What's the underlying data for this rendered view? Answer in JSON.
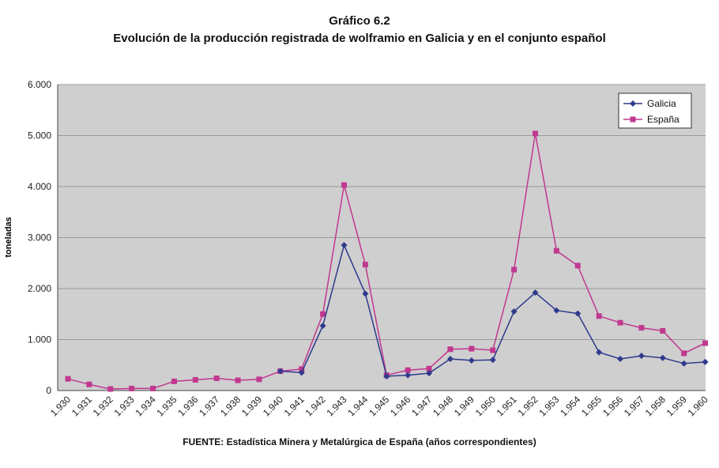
{
  "chart_data": {
    "type": "line",
    "title": "Gráfico 6.2",
    "subtitle": "Evolución de la producción registrada de wolframio en Galicia y en el conjunto español",
    "ylabel": "toneladas",
    "xlabel": "",
    "ylim": [
      0,
      6000
    ],
    "yticks": [
      0,
      1000,
      2000,
      3000,
      4000,
      5000,
      6000
    ],
    "ytick_labels": [
      "0",
      "1.000",
      "2.000",
      "3.000",
      "4.000",
      "5.000",
      "6.000"
    ],
    "categories": [
      "1.930",
      "1.931",
      "1.932",
      "1.933",
      "1.934",
      "1.935",
      "1.936",
      "1.937",
      "1.938",
      "1.939",
      "1.940",
      "1.941",
      "1.942",
      "1.943",
      "1.944",
      "1.945",
      "1.946",
      "1.947",
      "1.948",
      "1.949",
      "1.950",
      "1.951",
      "1.952",
      "1.953",
      "1.954",
      "1.955",
      "1.956",
      "1.957",
      "1.958",
      "1.959",
      "1.960"
    ],
    "grid": true,
    "legend_position": "top-right",
    "series": [
      {
        "name": "Galicia",
        "color": "#2e3a8c",
        "marker": "diamond",
        "values": [
          null,
          null,
          null,
          null,
          null,
          null,
          null,
          null,
          null,
          null,
          380,
          350,
          1270,
          2850,
          1900,
          280,
          300,
          340,
          620,
          590,
          600,
          1550,
          1920,
          1570,
          1510,
          750,
          620,
          680,
          640,
          530,
          560
        ]
      },
      {
        "name": "España",
        "color": "#c0388f",
        "marker": "square",
        "values": [
          230,
          120,
          30,
          40,
          40,
          180,
          210,
          240,
          200,
          220,
          380,
          420,
          1500,
          4030,
          2470,
          300,
          400,
          430,
          810,
          820,
          790,
          2370,
          5040,
          2740,
          2450,
          1460,
          1330,
          1230,
          1170,
          730,
          930
        ]
      }
    ]
  },
  "source": "FUENTE: Estadística Minera y Metalúrgica de España (años correspondientes)",
  "colors": {
    "plot_background": "#cfcfcf",
    "gridline": "#9a9a9a"
  }
}
